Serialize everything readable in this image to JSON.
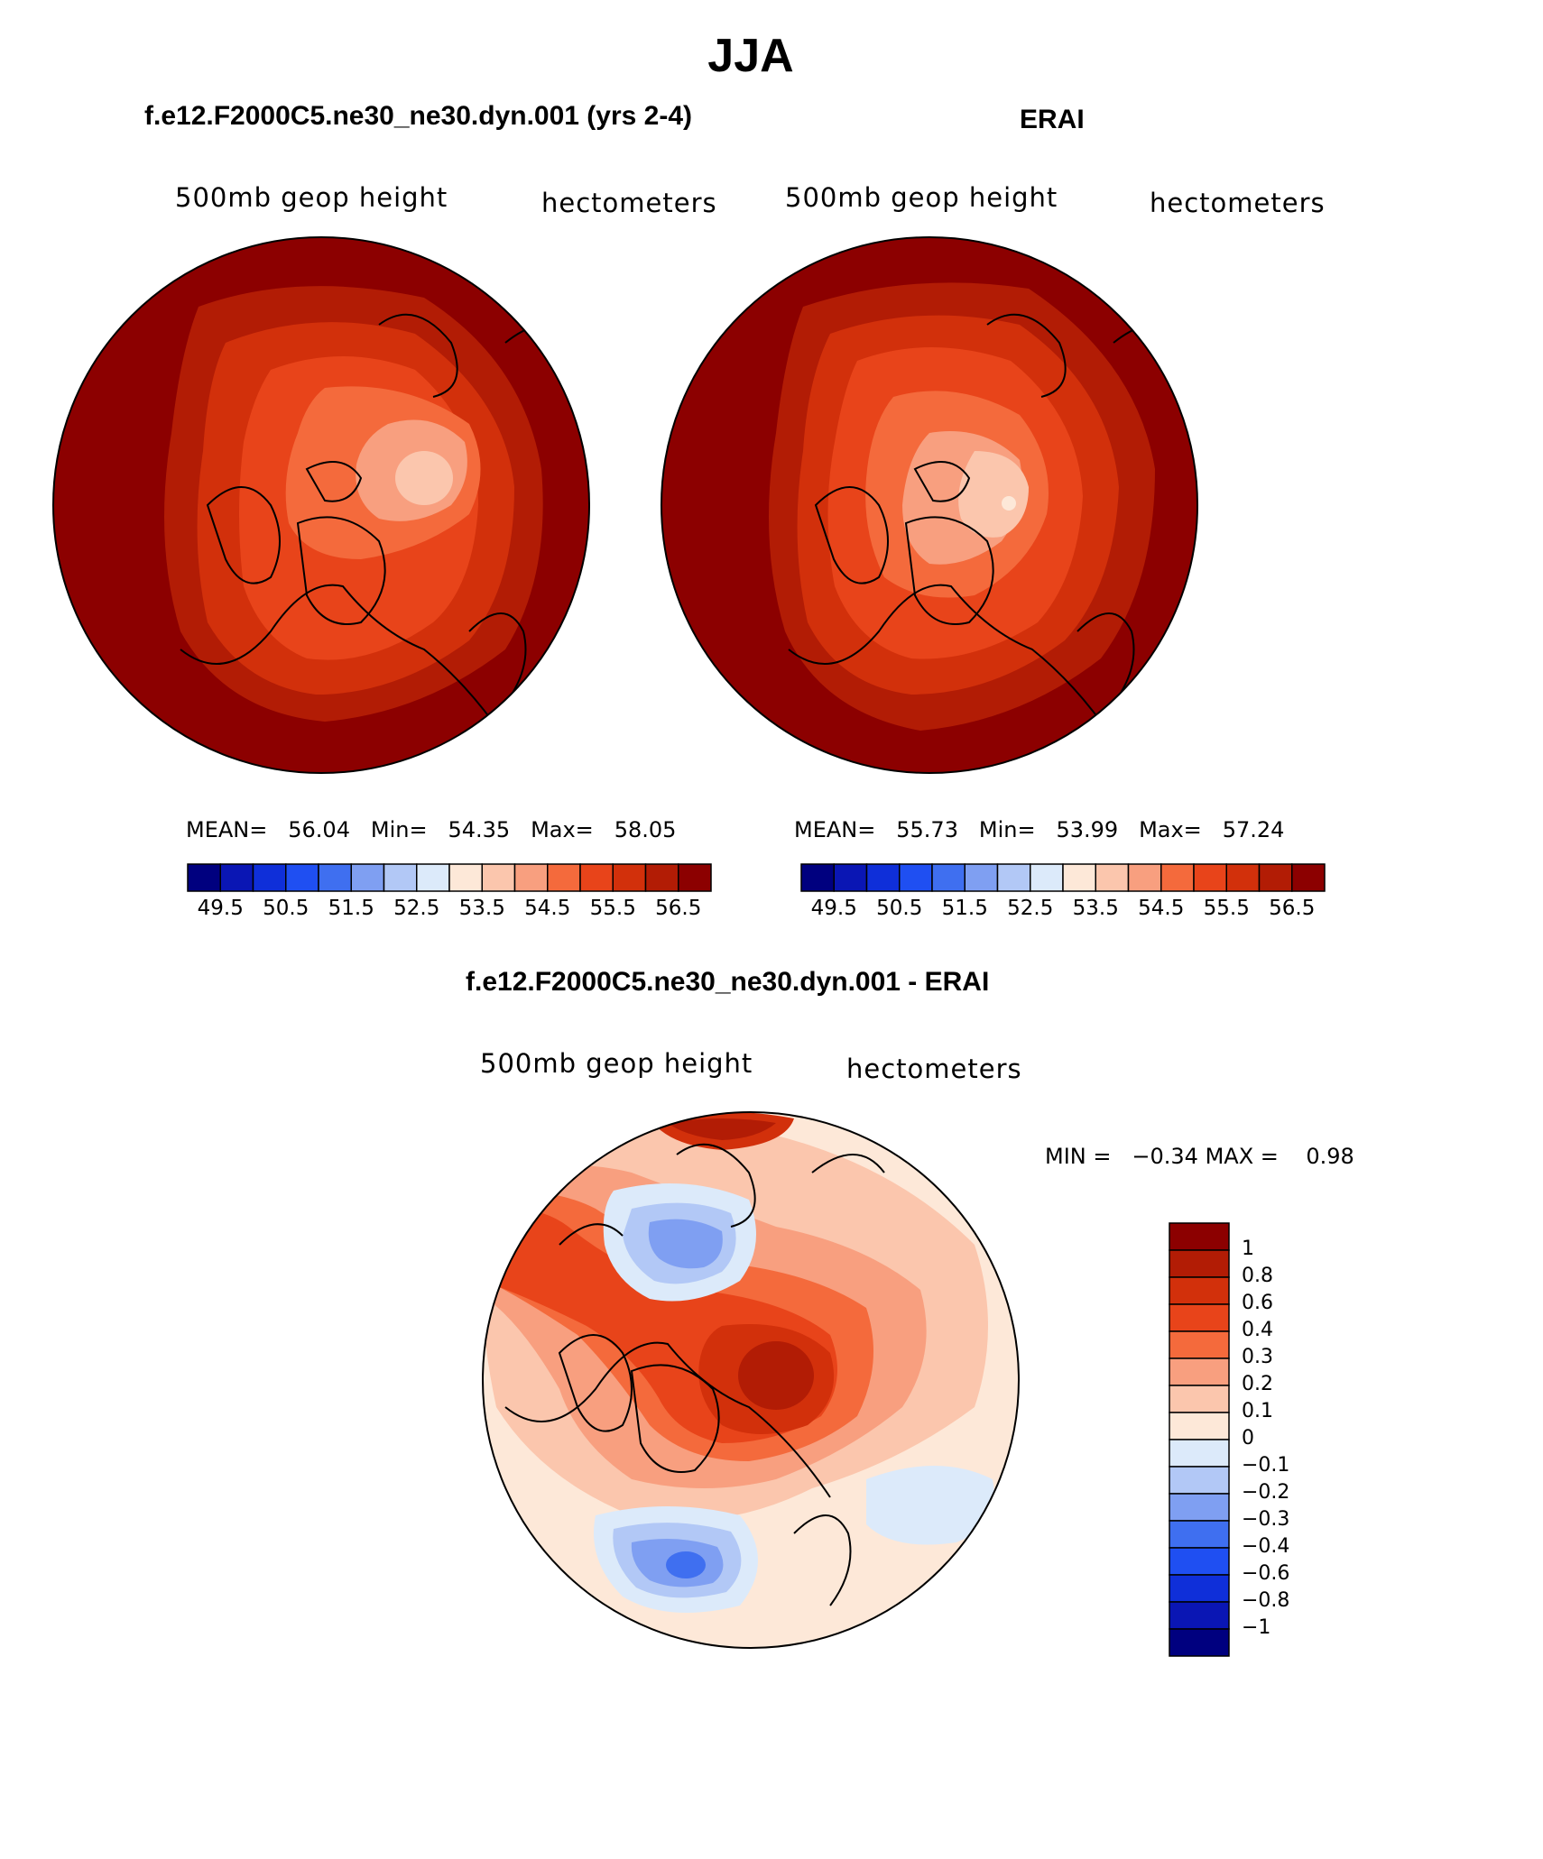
{
  "title": "JJA",
  "panels": [
    {
      "id": "model",
      "title": "f.e12.F2000C5.ne30_ne30.dyn.001 (yrs 2-4)",
      "variable_label": "500mb geop height",
      "units_label": "hectometers",
      "stats": {
        "mean_label": "MEAN=",
        "mean": "56.04",
        "min_label": "Min=",
        "min": "54.35",
        "max_label": "Max=",
        "max": "58.05"
      }
    },
    {
      "id": "obs",
      "title": "ERAI",
      "variable_label": "500mb geop height",
      "units_label": "hectometers",
      "stats": {
        "mean_label": "MEAN=",
        "mean": "55.73",
        "min_label": "Min=",
        "min": "53.99",
        "max_label": "Max=",
        "max": "57.24"
      }
    },
    {
      "id": "diff",
      "title": "f.e12.F2000C5.ne30_ne30.dyn.001 - ERAI",
      "variable_label": "500mb geop height",
      "units_label": "hectometers",
      "minmax": {
        "min_label": "MIN =",
        "min": "−0.34",
        "max_label": "MAX =",
        "max": "0.98"
      }
    }
  ],
  "colorbar_abs": {
    "colors": [
      "#00007f",
      "#0a16b4",
      "#0f2fd9",
      "#1f4ff2",
      "#3f6ff0",
      "#7f9ff2",
      "#b2c8f6",
      "#dceafa",
      "#fde8d8",
      "#fbc6ad",
      "#f89f7f",
      "#f46a3c",
      "#e8441a",
      "#d2300b",
      "#b21c05",
      "#8c0000"
    ],
    "tick_labels": [
      "49.5",
      "50.5",
      "51.5",
      "52.5",
      "53.5",
      "54.5",
      "55.5",
      "56.5"
    ]
  },
  "colorbar_diff": {
    "colors": [
      "#00007f",
      "#0a16b4",
      "#0f2fd9",
      "#1f4ff2",
      "#3f6ff0",
      "#7f9ff2",
      "#b2c8f6",
      "#dceafa",
      "#fde8d8",
      "#fbc6ad",
      "#f89f7f",
      "#f46a3c",
      "#e8441a",
      "#d2300b",
      "#b21c05",
      "#8c0000"
    ],
    "tick_labels": [
      "−1",
      "−0.8",
      "−0.6",
      "−0.4",
      "−0.3",
      "−0.2",
      "−0.1",
      "0",
      "0.1",
      "0.2",
      "0.3",
      "0.4",
      "0.6",
      "0.8",
      "1"
    ]
  },
  "palette": {
    "deep_red": "#8c0000",
    "red": "#b21c05",
    "red_orange": "#d2300b",
    "orange": "#e8441a",
    "light_orange": "#f46a3c",
    "salmon": "#f89f7f",
    "peach": "#fbc6ad",
    "cream": "#fde8d8",
    "pale_blue": "#dceafa",
    "light_blue": "#b2c8f6",
    "mid_blue": "#7f9ff2",
    "blue": "#3f6ff0"
  }
}
